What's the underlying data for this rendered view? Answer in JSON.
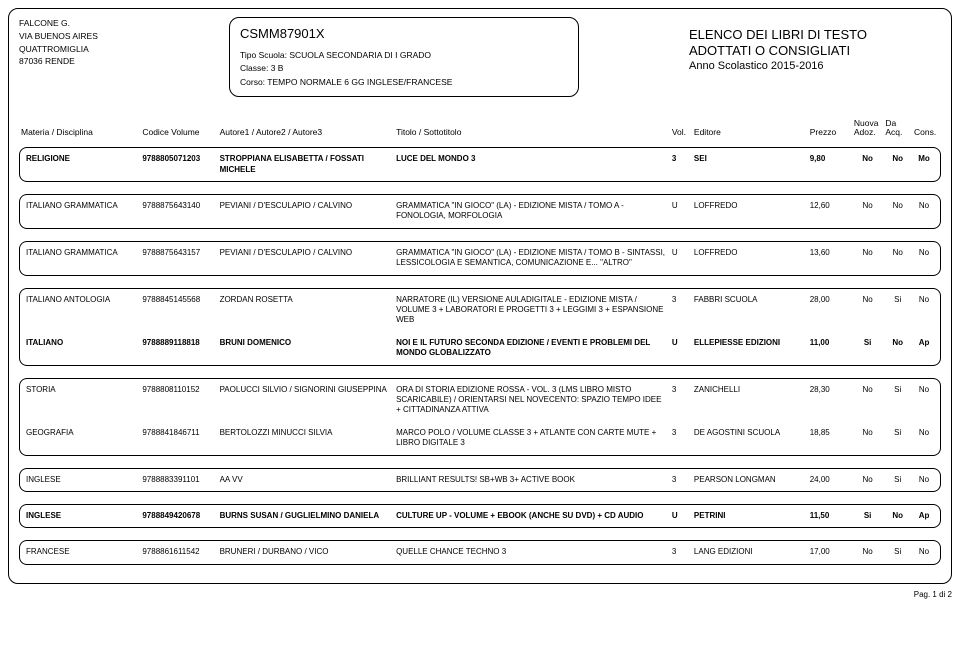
{
  "header": {
    "school_name": "FALCONE G.",
    "address1": "VIA BUENOS AIRES",
    "address2": "QUATTROMIGLIA",
    "postal_city": "87036  RENDE",
    "code": "CSMM87901X",
    "tipo_label": "Tipo Scuola:",
    "tipo_value": "SCUOLA SECONDARIA DI I GRADO",
    "classe_label": "Classe:",
    "classe_value": "3 B",
    "corso_label": "Corso:",
    "corso_value": "TEMPO NORMALE 6 GG INGLESE/FRANCESE",
    "elenco_line1": "ELENCO DEI LIBRI DI TESTO",
    "elenco_line2": "ADOTTATI O CONSIGLIATI",
    "anno": "Anno Scolastico 2015-2016"
  },
  "columns": {
    "materia": "Materia / Disciplina",
    "codice": "Codice Volume",
    "autore": "Autore1 / Autore2 / Autore3",
    "titolo": "Titolo / Sottotitolo",
    "vol": "Vol.",
    "editore": "Editore",
    "prezzo": "Prezzo",
    "nuova1": "Nuova",
    "nuova2": "Adoz.",
    "da1": "Da",
    "da2": "Acq.",
    "cons": "Cons."
  },
  "rows": [
    {
      "materia": "RELIGIONE",
      "codice": "9788805071203",
      "autore": "STROPPIANA ELISABETTA / FOSSATI MICHELE",
      "titolo": "LUCE DEL MONDO 3",
      "vol": "3",
      "editore": "SEI",
      "prezzo": "9,80",
      "nuova": "No",
      "da": "No",
      "cons": "Mo",
      "bold": true
    },
    {
      "materia": "ITALIANO GRAMMATICA",
      "codice": "9788875643140",
      "autore": "PEVIANI / D'ESCULAPIO / CALVINO",
      "titolo": "GRAMMATICA \"IN GIOCO\" (LA) - EDIZIONE MISTA / TOMO A - FONOLOGIA, MORFOLOGIA",
      "vol": "U",
      "editore": "LOFFREDO",
      "prezzo": "12,60",
      "nuova": "No",
      "da": "No",
      "cons": "No",
      "bold": false
    },
    {
      "materia": "ITALIANO GRAMMATICA",
      "codice": "9788875643157",
      "autore": "PEVIANI / D'ESCULAPIO / CALVINO",
      "titolo": "GRAMMATICA \"IN GIOCO\" (LA) - EDIZIONE MISTA / TOMO B - SINTASSI, LESSICOLOGIA E SEMANTICA, COMUNICAZIONE E... \"ALTRO\"",
      "vol": "U",
      "editore": "LOFFREDO",
      "prezzo": "13,60",
      "nuova": "No",
      "da": "No",
      "cons": "No",
      "bold": false
    },
    {
      "materia": "ITALIANO ANTOLOGIA",
      "codice": "9788845145568",
      "autore": "ZORDAN ROSETTA",
      "titolo": "NARRATORE (IL) VERSIONE AULADIGITALE - EDIZIONE MISTA / VOLUME 3 + LABORATORI E PROGETTI 3 + LEGGIMI 3 + ESPANSIONE WEB",
      "vol": "3",
      "editore": "FABBRI SCUOLA",
      "prezzo": "28,00",
      "nuova": "No",
      "da": "Si",
      "cons": "No",
      "bold": false
    },
    {
      "materia": "ITALIANO",
      "codice": "9788889118818",
      "autore": "BRUNI DOMENICO",
      "titolo": "NOI E IL FUTURO SECONDA EDIZIONE / EVENTI E PROBLEMI DEL MONDO GLOBALIZZATO",
      "vol": "U",
      "editore": "ELLEPIESSE EDIZIONI",
      "prezzo": "11,00",
      "nuova": "Si",
      "da": "No",
      "cons": "Ap",
      "bold": true
    },
    {
      "materia": "STORIA",
      "codice": "9788808110152",
      "autore": "PAOLUCCI SILVIO / SIGNORINI GIUSEPPINA",
      "titolo": "ORA DI STORIA EDIZIONE ROSSA - VOL. 3 (LMS LIBRO MISTO SCARICABILE) / ORIENTARSI NEL NOVECENTO: SPAZIO TEMPO IDEE + CITTADINANZA ATTIVA",
      "vol": "3",
      "editore": "ZANICHELLI",
      "prezzo": "28,30",
      "nuova": "No",
      "da": "Si",
      "cons": "No",
      "bold": false
    },
    {
      "materia": "GEOGRAFIA",
      "codice": "9788841846711",
      "autore": "BERTOLOZZI MINUCCI SILVIA",
      "titolo": "MARCO POLO / VOLUME CLASSE 3 + ATLANTE CON CARTE MUTE + LIBRO DIGITALE 3",
      "vol": "3",
      "editore": "DE AGOSTINI SCUOLA",
      "prezzo": "18,85",
      "nuova": "No",
      "da": "Si",
      "cons": "No",
      "bold": false
    },
    {
      "materia": "INGLESE",
      "codice": "9788883391101",
      "autore": "AA VV",
      "titolo": "BRILLIANT RESULTS! SB+WB 3+ ACTIVE BOOK",
      "vol": "3",
      "editore": "PEARSON LONGMAN",
      "prezzo": "24,00",
      "nuova": "No",
      "da": "Si",
      "cons": "No",
      "bold": false
    },
    {
      "materia": "INGLESE",
      "codice": "9788849420678",
      "autore": "BURNS SUSAN / GUGLIELMINO DANIELA",
      "titolo": "CULTURE UP  -  VOLUME + EBOOK (ANCHE SU DVD) + CD AUDIO",
      "vol": "U",
      "editore": "PETRINI",
      "prezzo": "11,50",
      "nuova": "Si",
      "da": "No",
      "cons": "Ap",
      "bold": true
    },
    {
      "materia": "FRANCESE",
      "codice": "9788861611542",
      "autore": "BRUNERI / DURBANO / VICO",
      "titolo": "QUELLE CHANCE TECHNO 3",
      "vol": "3",
      "editore": "LANG EDIZIONI",
      "prezzo": "17,00",
      "nuova": "No",
      "da": "Si",
      "cons": "No",
      "bold": false
    }
  ],
  "footer": "Pag. 1 di 2",
  "row_groups": [
    [
      0
    ],
    [
      1
    ],
    [
      2
    ],
    [
      3,
      4
    ],
    [
      5,
      6
    ],
    [
      7
    ],
    [
      8
    ],
    [
      9
    ]
  ]
}
